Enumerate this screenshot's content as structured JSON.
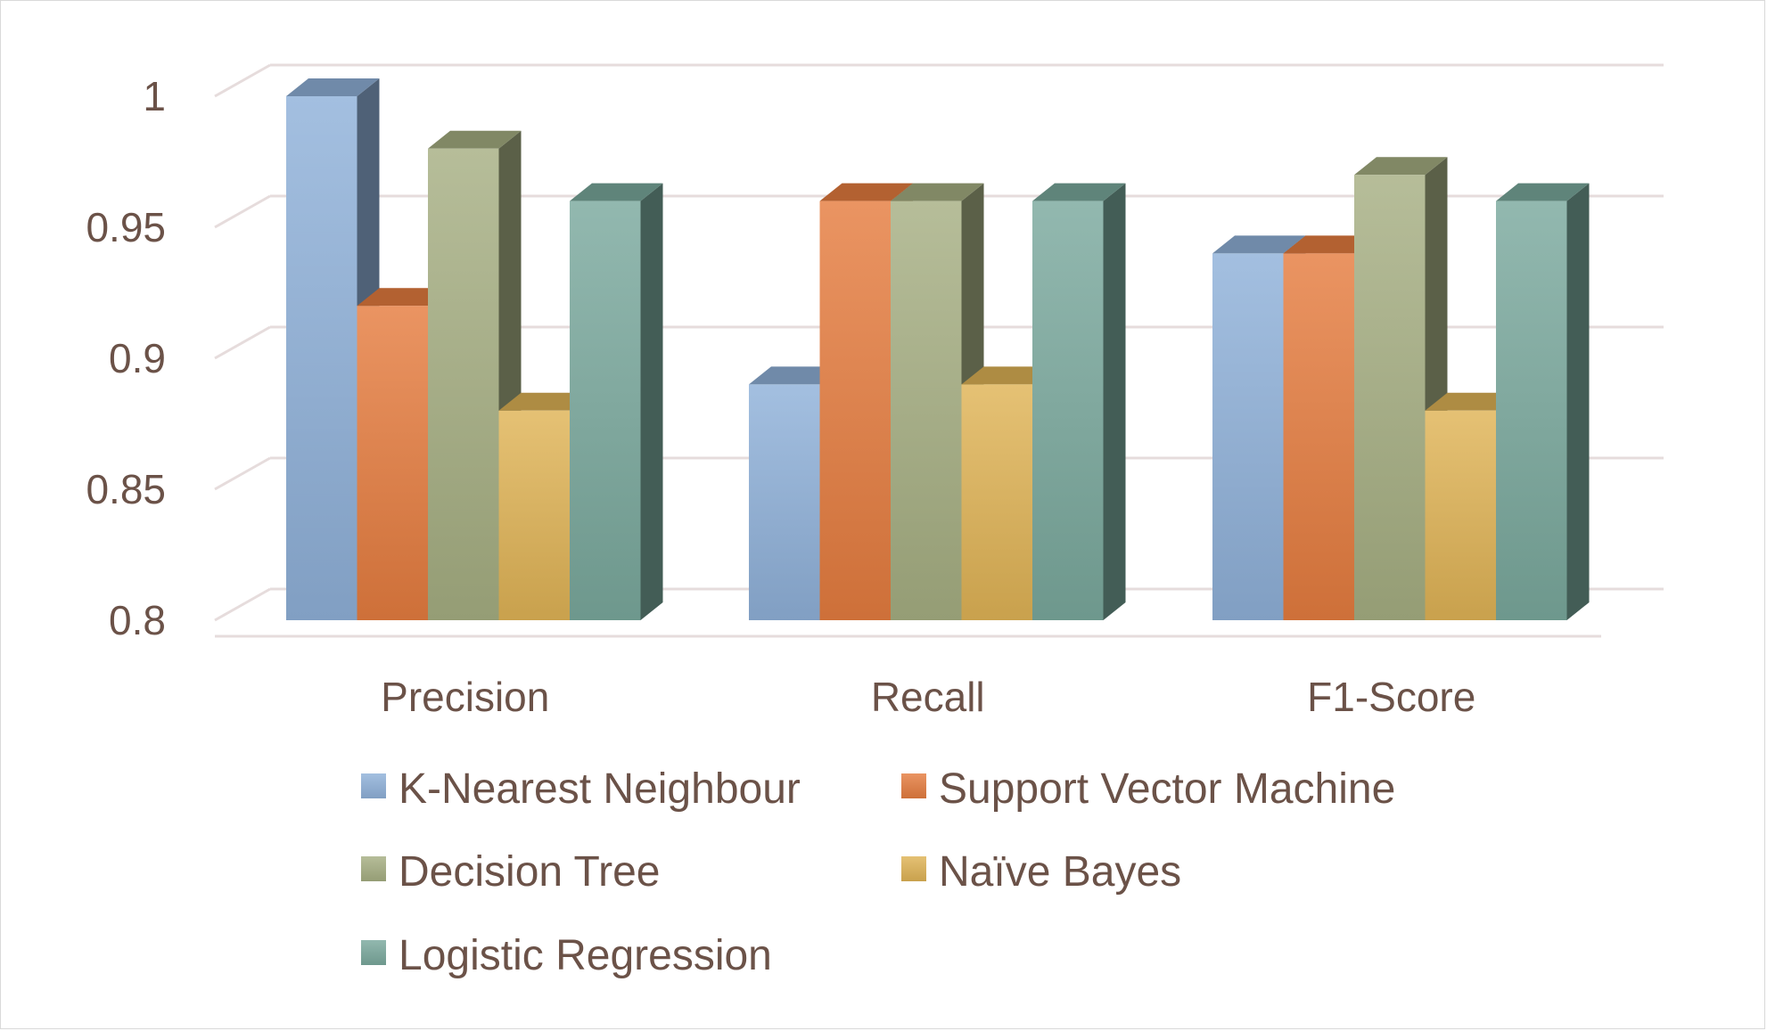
{
  "chart_data": {
    "type": "bar",
    "style": "3d-clustered-column",
    "categories": [
      "Precision",
      "Recall",
      "F1-Score"
    ],
    "series": [
      {
        "name": "K-Nearest Neighbour",
        "values": [
          1.0,
          0.89,
          0.94
        ],
        "color": "#8fb1d9"
      },
      {
        "name": "Support Vector Machine",
        "values": [
          0.92,
          0.96,
          0.94
        ],
        "color": "#e57c3f"
      },
      {
        "name": "Decision Tree",
        "values": [
          0.98,
          0.96,
          0.97
        ],
        "color": "#a6ae82"
      },
      {
        "name": "Naïve Bayes",
        "values": [
          0.88,
          0.89,
          0.88
        ],
        "color": "#dfb356"
      },
      {
        "name": "Logistic Regression",
        "values": [
          0.96,
          0.96,
          0.96
        ],
        "color": "#7aa99d"
      }
    ],
    "yticks": [
      "0.8",
      "0.85",
      "0.9",
      "0.95",
      "1"
    ],
    "ylim": [
      0.8,
      1.0
    ],
    "grid": true,
    "legend_position": "bottom",
    "title": "",
    "xlabel": "",
    "ylabel": ""
  }
}
